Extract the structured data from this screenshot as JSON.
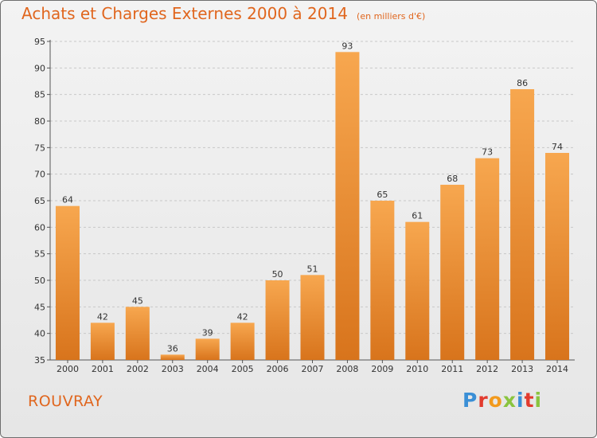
{
  "header": {
    "title": "Achats et Charges Externes 2000 à 2014",
    "unit": "(en milliers d'€)"
  },
  "footer": {
    "commune": "ROUVRAY",
    "logo_text": "Proxiti",
    "logo_letter_colors": [
      "#3a8fd6",
      "#e23b2e",
      "#f29a1d",
      "#8ac43f",
      "#3a8fd6",
      "#e23b2e",
      "#8ac43f"
    ]
  },
  "colors": {
    "bar_light": "#f7a74f",
    "bar_dark": "#d8741c",
    "accent": "#e0661e",
    "grid": "#c8c8c8",
    "axis_text": "#333333"
  },
  "chart_data": {
    "type": "bar",
    "title": "Achats et Charges Externes 2000 à 2014",
    "subtitle": "(en milliers d'€)",
    "categories": [
      "2000",
      "2001",
      "2002",
      "2003",
      "2004",
      "2005",
      "2006",
      "2007",
      "2008",
      "2009",
      "2010",
      "2011",
      "2012",
      "2013",
      "2014"
    ],
    "values": [
      64,
      42,
      45,
      36,
      39,
      42,
      50,
      51,
      93,
      65,
      61,
      68,
      73,
      86,
      74
    ],
    "ylim": [
      35,
      95
    ],
    "yticks": [
      35,
      40,
      45,
      50,
      55,
      60,
      65,
      70,
      75,
      80,
      85,
      90,
      95
    ],
    "grid": true,
    "data_labels": true
  }
}
